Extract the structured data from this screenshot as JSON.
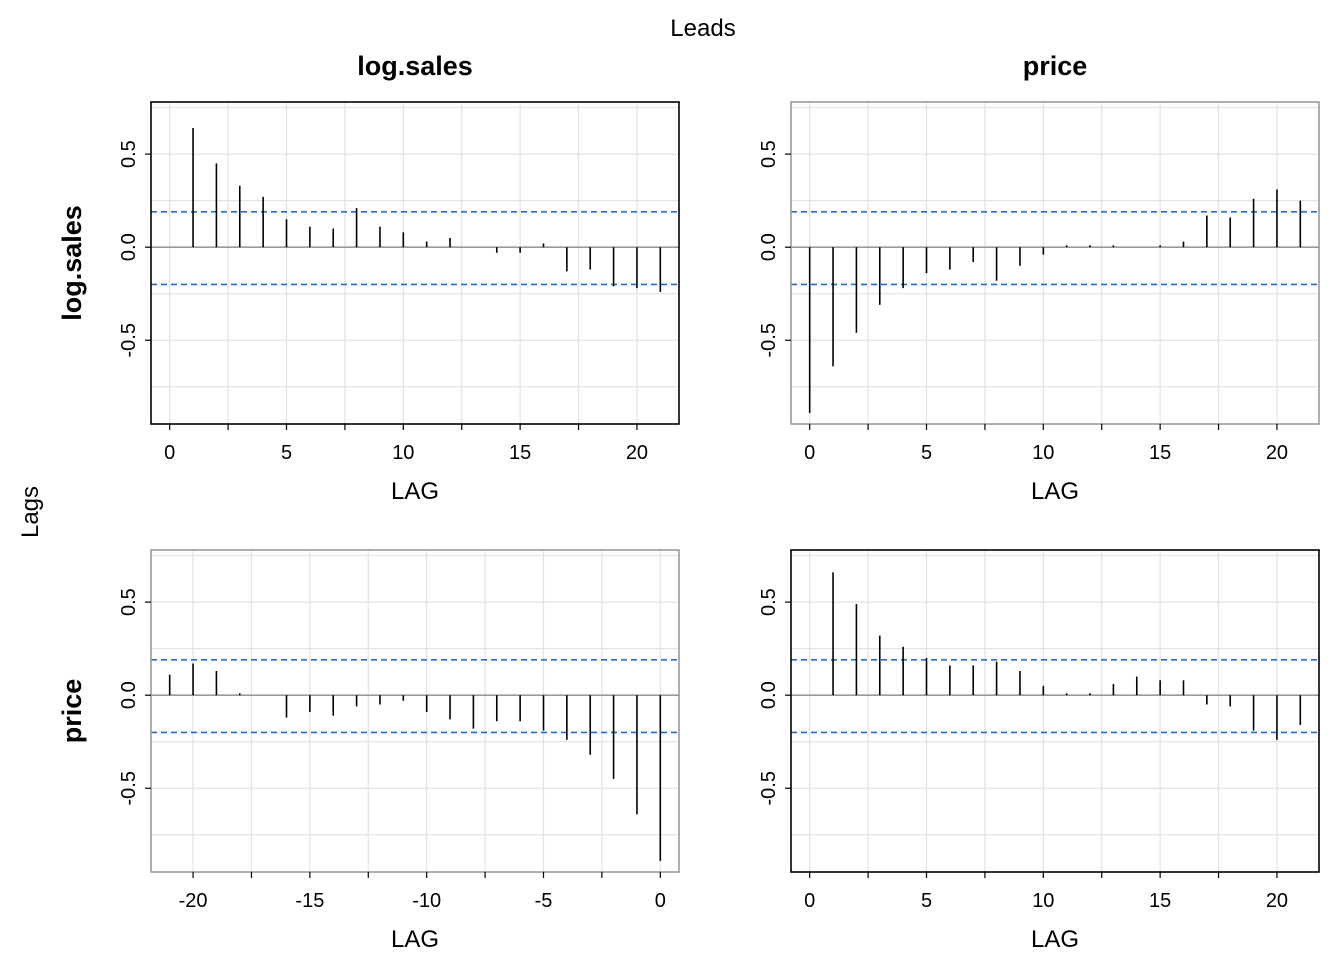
{
  "figure": {
    "top_label": "Leads",
    "left_label": "Lags",
    "column_titles": [
      "log.sales",
      "price"
    ],
    "row_titles": [
      "log.sales",
      "price"
    ]
  },
  "chart_data": [
    {
      "type": "bar",
      "panel": "top-left",
      "title": "log.sales",
      "row_label": "log.sales",
      "xlabel": "LAG",
      "ylabel": "",
      "xlim": [
        -0.8,
        21.8
      ],
      "ylim": [
        -0.95,
        0.78
      ],
      "xticks": [
        0,
        5,
        10,
        15,
        20
      ],
      "xtick_labels": [
        "0",
        "5",
        "10",
        "15",
        "20"
      ],
      "yticks": [
        -0.5,
        0.0,
        0.5
      ],
      "ytick_labels": [
        "-0.5",
        "0.0",
        "0.5"
      ],
      "frame": "black",
      "grid": true,
      "conf_limit": 0.19,
      "conf_lower": -0.2,
      "x": [
        0,
        1,
        2,
        3,
        4,
        5,
        6,
        7,
        8,
        9,
        10,
        11,
        12,
        13,
        14,
        15,
        16,
        17,
        18,
        19,
        20,
        21
      ],
      "values": [
        0,
        0.64,
        0.45,
        0.33,
        0.27,
        0.15,
        0.11,
        0.1,
        0.21,
        0.11,
        0.08,
        0.03,
        0.05,
        0,
        -0.03,
        -0.03,
        0.02,
        -0.13,
        -0.12,
        -0.21,
        -0.22,
        -0.24
      ]
    },
    {
      "type": "bar",
      "panel": "top-right",
      "title": "price",
      "row_label": "",
      "xlabel": "LAG",
      "ylabel": "",
      "xlim": [
        -0.8,
        21.8
      ],
      "ylim": [
        -0.95,
        0.78
      ],
      "xticks": [
        0,
        5,
        10,
        15,
        20
      ],
      "xtick_labels": [
        "0",
        "5",
        "10",
        "15",
        "20"
      ],
      "yticks": [
        -0.5,
        0.0,
        0.5
      ],
      "ytick_labels": [
        "-0.5",
        "0.0",
        "0.5"
      ],
      "frame": "grey",
      "grid": true,
      "conf_limit": 0.19,
      "conf_lower": -0.2,
      "x": [
        0,
        1,
        2,
        3,
        4,
        5,
        6,
        7,
        8,
        9,
        10,
        11,
        12,
        13,
        14,
        15,
        16,
        17,
        18,
        19,
        20,
        21
      ],
      "values": [
        -0.89,
        -0.64,
        -0.46,
        -0.31,
        -0.22,
        -0.14,
        -0.12,
        -0.08,
        -0.18,
        -0.1,
        -0.04,
        0.01,
        0.01,
        0.01,
        0,
        0.01,
        0.03,
        0.17,
        0.16,
        0.26,
        0.31,
        0.25
      ]
    },
    {
      "type": "bar",
      "panel": "bottom-left",
      "title": "",
      "row_label": "price",
      "xlabel": "LAG",
      "ylabel": "",
      "xlim": [
        -21.8,
        0.8
      ],
      "ylim": [
        -0.95,
        0.78
      ],
      "xticks": [
        -20,
        -15,
        -10,
        -5,
        0
      ],
      "xtick_labels": [
        "-20",
        "-15",
        "-10",
        "-5",
        "0"
      ],
      "yticks": [
        -0.5,
        0.0,
        0.5
      ],
      "ytick_labels": [
        "-0.5",
        "0.0",
        "0.5"
      ],
      "frame": "grey",
      "grid": true,
      "conf_limit": 0.19,
      "conf_lower": -0.2,
      "x": [
        -21,
        -20,
        -19,
        -18,
        -17,
        -16,
        -15,
        -14,
        -13,
        -12,
        -11,
        -10,
        -9,
        -8,
        -7,
        -6,
        -5,
        -4,
        -3,
        -2,
        -1,
        0
      ],
      "values": [
        0.11,
        0.17,
        0.13,
        0.01,
        0,
        -0.12,
        -0.09,
        -0.11,
        -0.06,
        -0.05,
        -0.03,
        -0.09,
        -0.13,
        -0.18,
        -0.14,
        -0.14,
        -0.19,
        -0.24,
        -0.32,
        -0.45,
        -0.64,
        -0.89
      ]
    },
    {
      "type": "bar",
      "panel": "bottom-right",
      "title": "",
      "row_label": "",
      "xlabel": "LAG",
      "ylabel": "",
      "xlim": [
        -0.8,
        21.8
      ],
      "ylim": [
        -0.95,
        0.78
      ],
      "xticks": [
        0,
        5,
        10,
        15,
        20
      ],
      "xtick_labels": [
        "0",
        "5",
        "10",
        "15",
        "20"
      ],
      "yticks": [
        -0.5,
        0.0,
        0.5
      ],
      "ytick_labels": [
        "-0.5",
        "0.0",
        "0.5"
      ],
      "frame": "black",
      "grid": true,
      "conf_limit": 0.19,
      "conf_lower": -0.2,
      "x": [
        0,
        1,
        2,
        3,
        4,
        5,
        6,
        7,
        8,
        9,
        10,
        11,
        12,
        13,
        14,
        15,
        16,
        17,
        18,
        19,
        20,
        21
      ],
      "values": [
        0,
        0.66,
        0.49,
        0.32,
        0.26,
        0.2,
        0.16,
        0.16,
        0.18,
        0.13,
        0.05,
        0.01,
        0.01,
        0.06,
        0.1,
        0.08,
        0.08,
        -0.05,
        -0.06,
        -0.19,
        -0.24,
        -0.16
      ]
    }
  ]
}
